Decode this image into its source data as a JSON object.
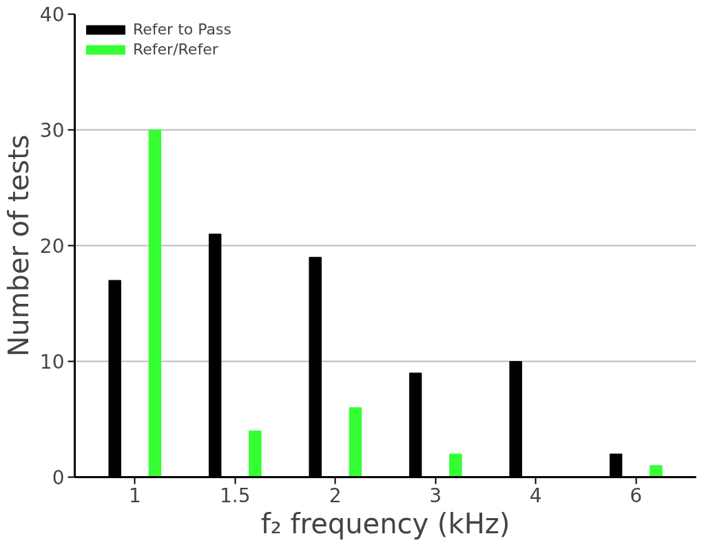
{
  "chart_data": {
    "type": "bar",
    "xlabel": "f₂ frequency (kHz)",
    "ylabel": "Number of tests",
    "categories": [
      "1",
      "1.5",
      "2",
      "3",
      "4",
      "6"
    ],
    "series": [
      {
        "name": "Refer to Pass",
        "color": "#000000",
        "values": [
          17,
          21,
          19,
          9,
          10,
          2
        ]
      },
      {
        "name": "Refer/Refer",
        "color": "#33ff33",
        "values": [
          30,
          4,
          6,
          2,
          0,
          1
        ]
      }
    ],
    "ylim": [
      0,
      40
    ],
    "yticks": [
      0,
      10,
      20,
      30,
      40
    ],
    "grid": "y",
    "legend": "top left"
  }
}
